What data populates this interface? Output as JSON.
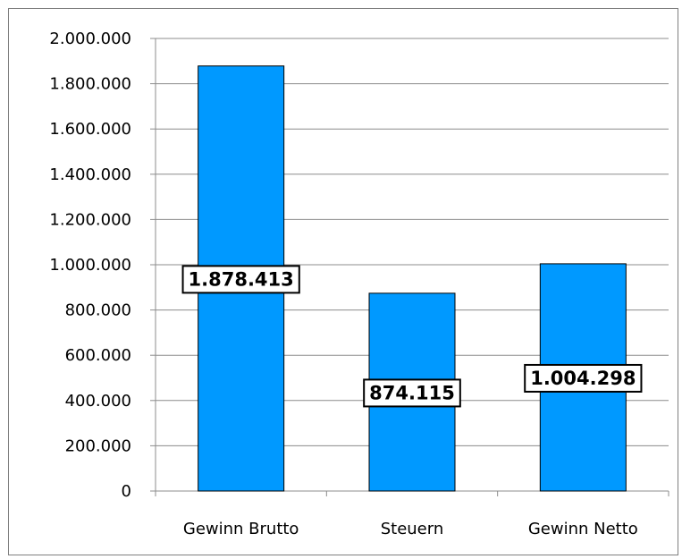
{
  "chart_data": {
    "type": "bar",
    "title": "",
    "xlabel": "",
    "ylabel": "",
    "categories": [
      "Gewinn Brutto",
      "Steuern",
      "Gewinn Netto"
    ],
    "values": [
      1878413,
      874115,
      1004298
    ],
    "data_labels": [
      "1.878.413",
      "874.115",
      "1.004.298"
    ],
    "ylim": [
      0,
      2000000
    ],
    "yticks": [
      0,
      200000,
      400000,
      600000,
      800000,
      1000000,
      1200000,
      1400000,
      1600000,
      1800000,
      2000000
    ],
    "ytick_labels": [
      "0",
      "200.000",
      "400.000",
      "600.000",
      "800.000",
      "1.000.000",
      "1.200.000",
      "1.400.000",
      "1.600.000",
      "1.800.000",
      "2.000.000"
    ],
    "grid": true,
    "legend": "none",
    "bar_color": "#0099ff",
    "bar_edge_color": "#000000",
    "grid_color": "#8c8c8c"
  }
}
